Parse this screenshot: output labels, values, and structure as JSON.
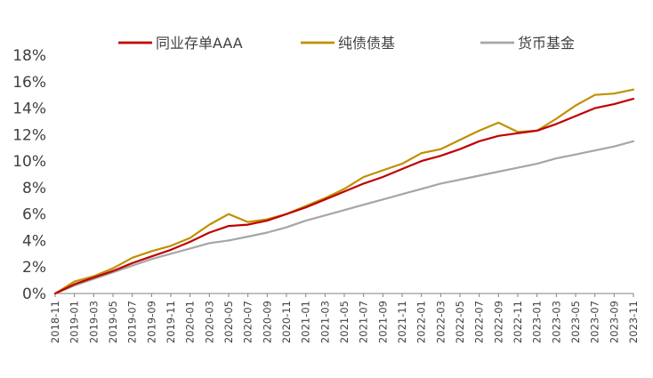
{
  "chart_data": {
    "type": "line",
    "title": "",
    "xlabel": "",
    "ylabel": "",
    "ylim": [
      0,
      18
    ],
    "yticks": [
      "0%",
      "2%",
      "4%",
      "6%",
      "8%",
      "10%",
      "12%",
      "14%",
      "16%",
      "18%"
    ],
    "grid": false,
    "legend_position": "top",
    "x": [
      "2018-11",
      "2019-01",
      "2019-03",
      "2019-05",
      "2019-07",
      "2019-09",
      "2019-11",
      "2020-01",
      "2020-03",
      "2020-05",
      "2020-07",
      "2020-09",
      "2020-11",
      "2021-01",
      "2021-03",
      "2021-05",
      "2021-07",
      "2021-09",
      "2021-11",
      "2022-01",
      "2022-03",
      "2022-05",
      "2022-07",
      "2022-09",
      "2022-11",
      "2023-01",
      "2023-03",
      "2023-05",
      "2023-07",
      "2023-09",
      "2023-11"
    ],
    "series": [
      {
        "name": "同业存单AAA",
        "color": "#C00000",
        "values": [
          0.0,
          0.7,
          1.2,
          1.7,
          2.3,
          2.8,
          3.3,
          3.9,
          4.6,
          5.1,
          5.2,
          5.5,
          6.0,
          6.5,
          7.1,
          7.7,
          8.3,
          8.8,
          9.4,
          10.0,
          10.4,
          10.9,
          11.5,
          11.9,
          12.1,
          12.3,
          12.8,
          13.4,
          14.0,
          14.3,
          14.7
        ]
      },
      {
        "name": "纯债债基",
        "color": "#BF9000",
        "values": [
          0.0,
          0.9,
          1.3,
          1.9,
          2.7,
          3.2,
          3.6,
          4.2,
          5.2,
          6.0,
          5.4,
          5.6,
          6.0,
          6.6,
          7.2,
          7.9,
          8.8,
          9.3,
          9.8,
          10.6,
          10.9,
          11.6,
          12.3,
          12.9,
          12.2,
          12.3,
          13.2,
          14.2,
          15.0,
          15.1,
          15.4
        ]
      },
      {
        "name": "货币基金",
        "color": "#A6A6A6",
        "values": [
          0.0,
          0.6,
          1.1,
          1.6,
          2.1,
          2.6,
          3.0,
          3.4,
          3.8,
          4.0,
          4.3,
          4.6,
          5.0,
          5.5,
          5.9,
          6.3,
          6.7,
          7.1,
          7.5,
          7.9,
          8.3,
          8.6,
          8.9,
          9.2,
          9.5,
          9.8,
          10.2,
          10.5,
          10.8,
          11.1,
          11.5
        ]
      }
    ]
  }
}
